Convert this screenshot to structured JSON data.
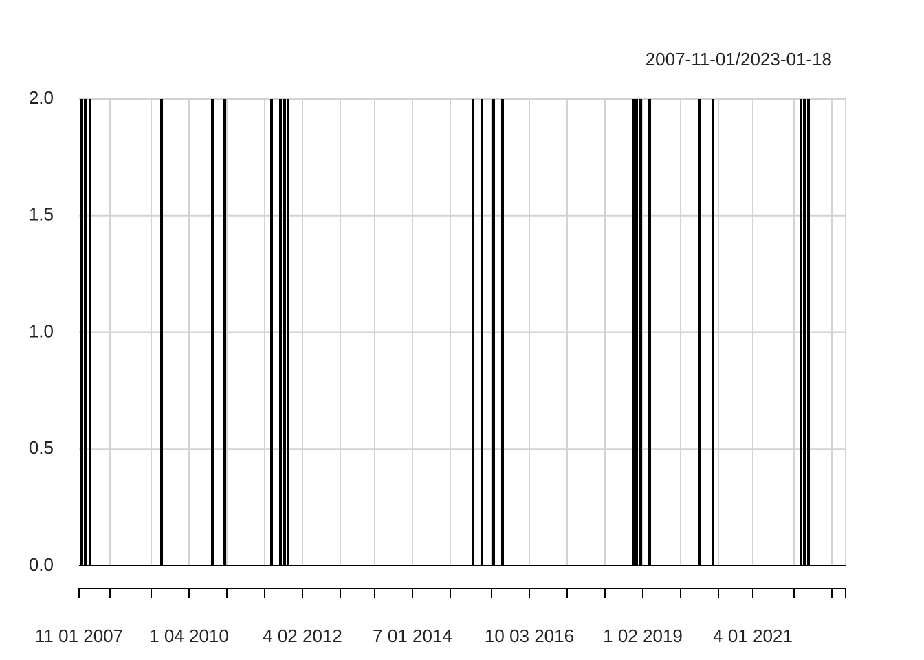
{
  "chart_data": {
    "type": "spike",
    "title": "2007-11-01/2023-01-18",
    "x": [
      0.8,
      1.8,
      3.2,
      24,
      38.8,
      42.4,
      56,
      58.6,
      59.8,
      60.8,
      114.6,
      117.2,
      120.6,
      123.2,
      161.2,
      162.2,
      163.4,
      166,
      180.6,
      184.4,
      210,
      211,
      212.2
    ],
    "values": [
      2,
      2,
      2,
      2,
      2,
      2,
      2,
      2,
      2,
      2,
      2,
      2,
      2,
      2,
      2,
      2,
      2,
      2,
      2,
      2,
      2,
      2,
      2
    ],
    "color": "#000000",
    "xlim": [
      0,
      223
    ],
    "xticks": [
      {
        "value": 0,
        "label": "11 01 2007"
      },
      9,
      21,
      {
        "value": 32,
        "label": "1 04 2010"
      },
      43,
      54,
      {
        "value": 65,
        "label": "4 02 2012"
      },
      76,
      86,
      {
        "value": 97,
        "label": "7 01 2014"
      },
      108,
      120,
      {
        "value": 131,
        "label": "10 03 2016"
      },
      142,
      153,
      {
        "value": 164,
        "label": "1 02 2019"
      },
      175,
      186,
      {
        "value": 196,
        "label": "4 01 2021"
      },
      208,
      219,
      223
    ],
    "ylim": [
      0,
      2
    ],
    "yticks": [
      {
        "value": 0,
        "label": "0.0"
      },
      0.5,
      {
        "value": 1,
        "label": "1.0"
      },
      1.5,
      {
        "value": 2,
        "label": "2.0"
      }
    ],
    "grid": true
  }
}
